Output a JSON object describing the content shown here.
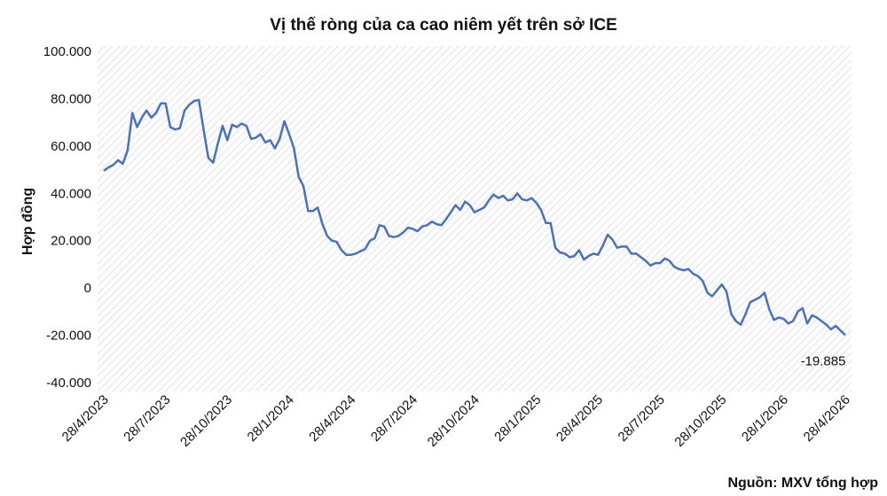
{
  "chart_data": {
    "type": "line",
    "title": "Vị thế ròng của ca cao niêm yết trên sở ICE",
    "y_label": "Hợp đồng",
    "source": "Nguồn: MXV tổng hợp",
    "color": "#4a72b8",
    "categories": [
      "28/4/2023",
      null,
      null,
      null,
      null,
      null,
      null,
      null,
      null,
      null,
      null,
      null,
      null,
      "28/7/2023",
      null,
      null,
      null,
      null,
      null,
      null,
      null,
      null,
      null,
      null,
      null,
      null,
      "28/10/2023",
      null,
      null,
      null,
      null,
      null,
      null,
      null,
      null,
      null,
      null,
      null,
      null,
      "28/1/2024",
      null,
      null,
      null,
      null,
      null,
      null,
      null,
      null,
      null,
      null,
      null,
      null,
      "28/4/2024",
      null,
      null,
      null,
      null,
      null,
      null,
      null,
      null,
      null,
      null,
      null,
      null,
      "28/7/2024",
      null,
      null,
      null,
      null,
      null,
      null,
      null,
      null,
      null,
      null,
      null,
      null,
      "28/10/2024",
      null,
      null,
      null,
      null,
      null,
      null,
      null,
      null,
      null,
      null,
      null,
      null,
      "28/1/2025",
      null,
      null,
      null,
      null,
      null,
      null,
      null,
      null,
      null,
      null,
      null,
      null,
      "28/4/2025",
      null,
      null,
      null,
      null,
      null,
      null,
      null,
      null,
      null,
      null,
      null,
      null,
      "28/7/2025",
      null,
      null,
      null,
      null,
      null,
      null,
      null,
      null,
      null,
      null,
      null,
      null,
      "28/10/2025",
      null,
      null,
      null,
      null,
      null,
      null,
      null,
      null,
      null,
      null,
      null,
      null,
      "28/1/2026",
      null,
      null,
      null,
      null,
      null,
      null,
      null,
      null,
      null,
      null,
      null,
      null,
      "28/4/2026"
    ],
    "values": [
      49500,
      51000,
      52000,
      54000,
      52500,
      58000,
      74000,
      68000,
      72000,
      75000,
      72000,
      74000,
      78000,
      78000,
      68000,
      67000,
      67500,
      75000,
      77500,
      79000,
      79500,
      67000,
      55000,
      53000,
      61000,
      68500,
      62500,
      69000,
      68000,
      69500,
      68500,
      63000,
      63500,
      65000,
      61500,
      62500,
      59000,
      63000,
      70500,
      65000,
      59000,
      47000,
      43000,
      32500,
      32500,
      34000,
      27000,
      22000,
      20000,
      19500,
      16000,
      14000,
      14000,
      14500,
      15500,
      16500,
      20000,
      21000,
      26500,
      26000,
      22000,
      21500,
      22000,
      23500,
      25500,
      25000,
      24000,
      26000,
      26500,
      28000,
      27000,
      26500,
      29000,
      32000,
      35000,
      33000,
      36500,
      35000,
      32000,
      33000,
      34000,
      37000,
      39500,
      38000,
      39000,
      37000,
      37500,
      40000,
      37500,
      37000,
      38000,
      36000,
      33000,
      27500,
      27500,
      17000,
      15000,
      14500,
      13000,
      13500,
      16000,
      12000,
      13500,
      14500,
      14000,
      18000,
      22500,
      20500,
      17000,
      17500,
      17500,
      14500,
      14500,
      13000,
      11500,
      9500,
      10500,
      10500,
      12500,
      11500,
      9000,
      8000,
      7500,
      8000,
      6000,
      5000,
      3000,
      -2000,
      -3500,
      -1000,
      1500,
      -1500,
      -11000,
      -14000,
      -15500,
      -11000,
      -6000,
      -5000,
      -4000,
      -2000,
      -9000,
      -13500,
      -12500,
      -13000,
      -15000,
      -14000,
      -10000,
      -8500,
      -15000,
      -11500,
      -12500,
      -14000,
      -15500,
      -17500,
      -16000,
      -18000,
      -19885
    ],
    "value_labels": [
      null,
      null,
      null,
      null,
      null,
      null,
      null,
      null,
      null,
      null,
      null,
      null,
      null,
      null,
      null,
      null,
      null,
      null,
      null,
      null,
      null,
      null,
      null,
      null,
      null,
      null,
      null,
      null,
      null,
      null,
      null,
      null,
      null,
      null,
      null,
      null,
      null,
      null,
      null,
      null,
      null,
      null,
      null,
      null,
      null,
      null,
      null,
      null,
      null,
      null,
      null,
      null,
      null,
      null,
      null,
      null,
      null,
      null,
      null,
      null,
      null,
      null,
      null,
      null,
      null,
      null,
      null,
      null,
      null,
      null,
      null,
      null,
      null,
      null,
      null,
      null,
      null,
      null,
      null,
      null,
      null,
      null,
      null,
      null,
      null,
      null,
      null,
      null,
      null,
      null,
      null,
      null,
      null,
      null,
      null,
      null,
      null,
      null,
      null,
      null,
      null,
      null,
      null,
      null,
      null,
      null,
      null,
      null,
      null,
      null,
      null,
      null,
      null,
      null,
      null,
      null,
      null,
      null,
      null,
      null,
      null,
      null,
      null,
      null,
      null,
      null,
      null,
      null,
      null,
      null,
      null,
      null,
      null,
      null,
      null,
      null,
      null,
      null,
      null,
      null,
      null,
      null,
      null,
      null,
      null,
      null,
      null,
      null,
      null,
      null,
      null,
      null,
      null,
      null,
      null,
      null,
      "-19.885"
    ],
    "ylim": [
      -40000,
      100000
    ],
    "yticks": [
      {
        "value": -40000,
        "label": "-40.000"
      },
      {
        "value": -20000,
        "label": "-20.000"
      },
      0,
      {
        "value": 20000,
        "label": "20.000"
      },
      {
        "value": 40000,
        "label": "40.000"
      },
      {
        "value": 60000,
        "label": "60.000"
      },
      {
        "value": 80000,
        "label": "80.000"
      },
      {
        "value": 100000,
        "label": "100.000"
      }
    ],
    "grid": false
  }
}
